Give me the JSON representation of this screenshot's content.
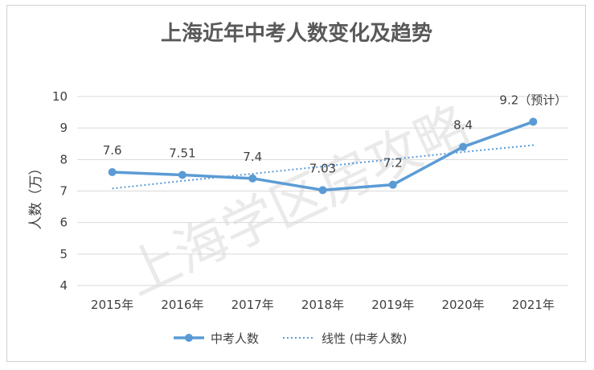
{
  "chart_data": {
    "type": "line",
    "title": "上海近年中考人数变化及趋势",
    "ylabel": "人数（万）",
    "categories": [
      "2015年",
      "2016年",
      "2017年",
      "2018年",
      "2019年",
      "2020年",
      "2021年"
    ],
    "series": [
      {
        "name": "中考人数",
        "values": [
          7.6,
          7.51,
          7.4,
          7.03,
          7.2,
          8.4,
          9.2
        ],
        "color": "#5b9bd5"
      },
      {
        "name": "线性 (中考人数)",
        "values": [
          7.08,
          7.32,
          7.55,
          7.78,
          8.01,
          8.24,
          8.46
        ],
        "color": "#5b9bd5",
        "style": "dotted"
      }
    ],
    "data_labels": [
      "7.6",
      "7.51",
      "7.4",
      "7.03",
      "7.2",
      "8.4",
      "9.2（预计）"
    ],
    "yticks": [
      "4",
      "5",
      "6",
      "7",
      "8",
      "9",
      "10"
    ],
    "ylim": [
      4,
      10
    ],
    "grid": true,
    "legend_position": "bottom",
    "watermark": "上海学区房攻略"
  }
}
